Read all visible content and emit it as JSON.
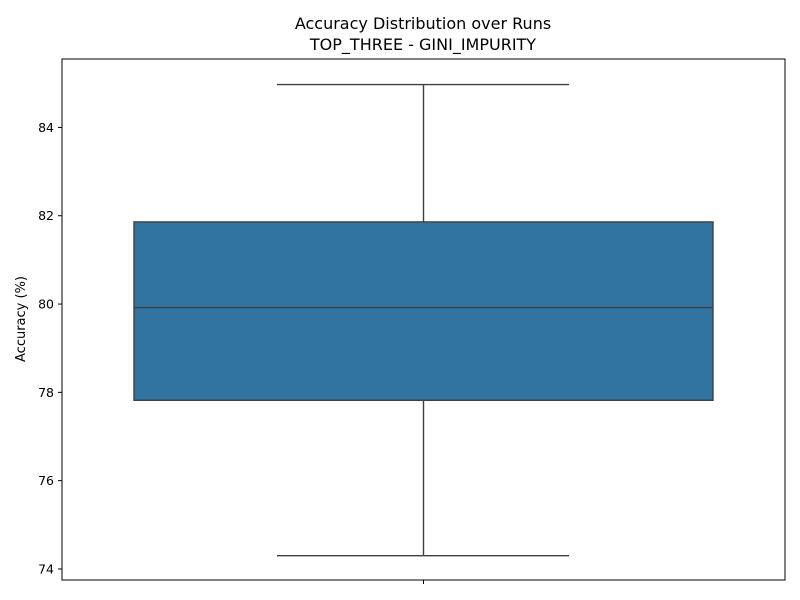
{
  "chart_data": {
    "type": "box",
    "title": "Accuracy Distribution over Runs",
    "subtitle": "TOP_THREE - GINI_IMPURITY",
    "xlabel": "",
    "ylabel": "Accuracy (%)",
    "ylim": [
      73.75,
      85.55
    ],
    "yticks": [
      "74",
      "76",
      "78",
      "80",
      "82",
      "84"
    ],
    "grid": false,
    "box": {
      "min": 74.3,
      "q1": 77.82,
      "median": 79.92,
      "q3": 81.86,
      "max": 84.97
    },
    "colors": {
      "box_fill": "#3274a1",
      "line": "#3f3f3f",
      "axis": "#000000"
    }
  }
}
